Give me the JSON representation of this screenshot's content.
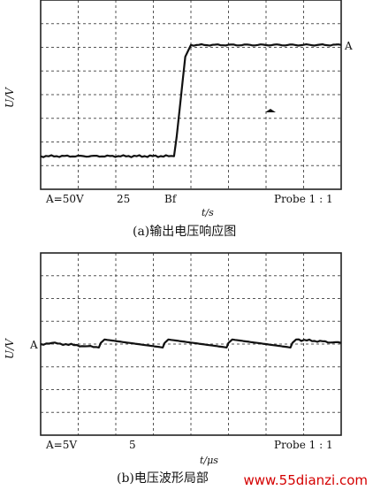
{
  "chart_data": [
    {
      "type": "line",
      "title": "",
      "xlabel": "t/s",
      "ylabel": "U/V",
      "caption": "(a)输出电压响应图",
      "grid": true,
      "grid_divisions": [
        8,
        8
      ],
      "scope_readout": {
        "channel_scale": "A=50V",
        "timebase": "25",
        "mode": "Bf",
        "probe": "Probe 1 : 1"
      },
      "channel_marker": "A",
      "series": [
        {
          "x": [
            0,
            3.55,
            3.62,
            3.7,
            3.78,
            3.85,
            4.0,
            8
          ],
          "y": [
            -2.6,
            -2.6,
            -1.8,
            -0.6,
            0.6,
            1.6,
            2.1,
            2.1
          ]
        }
      ],
      "xlim": [
        0,
        8
      ],
      "ylim": [
        -4,
        4
      ]
    },
    {
      "type": "line",
      "title": "",
      "xlabel": "t/μs",
      "ylabel": "U/V",
      "caption": "(b)电压波形局部",
      "grid": true,
      "grid_divisions": [
        8,
        8
      ],
      "scope_readout": {
        "channel_scale": "A=5V",
        "timebase": "5",
        "probe": "Probe 1 : 1"
      },
      "channel_marker": "A",
      "series": [
        {
          "x": [
            0,
            0.3,
            1.55,
            1.6,
            1.7,
            3.25,
            3.3,
            3.4,
            4.95,
            5.0,
            5.1,
            6.65,
            6.7,
            6.8,
            8
          ],
          "y": [
            0.0,
            0.05,
            -0.15,
            0.05,
            0.2,
            -0.15,
            0.05,
            0.2,
            -0.15,
            0.05,
            0.2,
            -0.15,
            0.05,
            0.2,
            0.05
          ]
        }
      ],
      "xlim": [
        0,
        8
      ],
      "ylim": [
        -4,
        4
      ]
    }
  ],
  "watermark": "www.55dianzi.com"
}
